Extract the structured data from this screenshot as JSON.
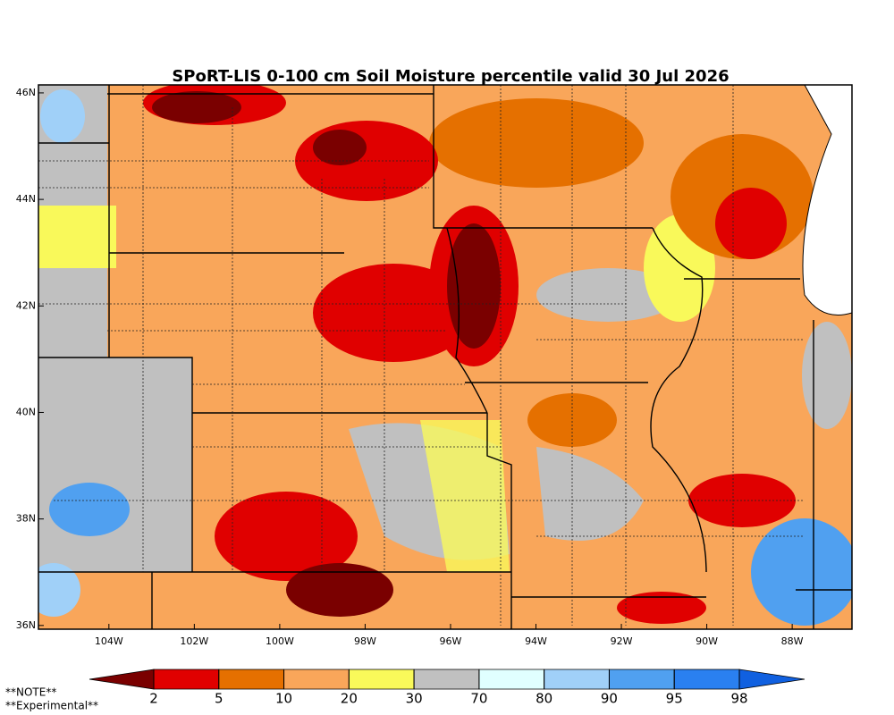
{
  "title": "SPoRT-LIS 0-100 cm Soil Moisture percentile valid 30 Jul 2026",
  "map": {
    "latlim": [
      35.93,
      46.15
    ],
    "lonlim": [
      -105.65,
      -86.6
    ],
    "lat_ticks": [
      {
        "value": 46,
        "label": "46N"
      },
      {
        "value": 44,
        "label": "44N"
      },
      {
        "value": 42,
        "label": "42N"
      },
      {
        "value": 40,
        "label": "40N"
      },
      {
        "value": 38,
        "label": "38N"
      },
      {
        "value": 36,
        "label": "36N"
      }
    ],
    "lon_ticks": [
      {
        "value": -104,
        "label": "104W"
      },
      {
        "value": -102,
        "label": "102W"
      },
      {
        "value": -100,
        "label": "100W"
      },
      {
        "value": -98,
        "label": "98W"
      },
      {
        "value": -96,
        "label": "96W"
      },
      {
        "value": -94,
        "label": "94W"
      },
      {
        "value": -92,
        "label": "92W"
      },
      {
        "value": -90,
        "label": "90W"
      },
      {
        "value": -88,
        "label": "88W"
      }
    ]
  },
  "colorbar": {
    "ticks": [
      2,
      5,
      10,
      20,
      30,
      70,
      80,
      90,
      95,
      98
    ],
    "colors": [
      "#7a0000",
      "#e00000",
      "#e57000",
      "#f9a65a",
      "#f9f95a",
      "#c0c0c0",
      "#e0ffff",
      "#a0d0f8",
      "#50a0f0",
      "#2a80f0",
      "#1060e0"
    ]
  },
  "notes": [
    "**NOTE**",
    "**Experimental**"
  ]
}
